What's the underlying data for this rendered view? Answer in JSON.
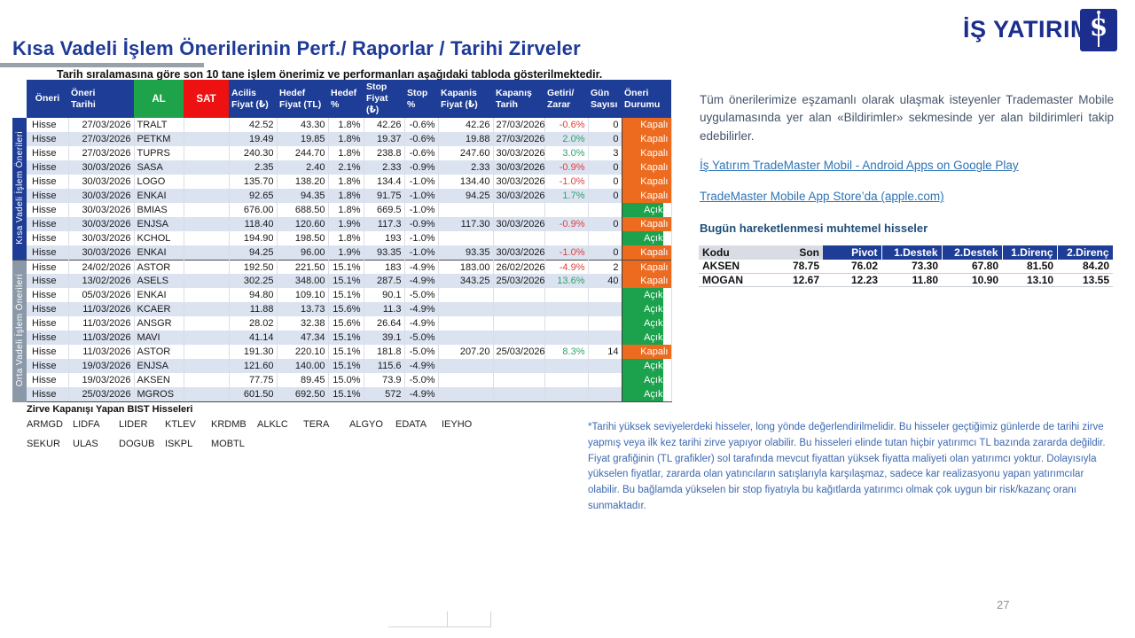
{
  "logo": {
    "text": "İŞ YATIRIM",
    "monogram": "İŞ"
  },
  "title": "Kısa Vadeli İşlem Önerilerinin Perf./ Raporlar / Tarihi Zirveler",
  "subtitle": "Tarih sıralamasına göre son 10 tane işlem önerimiz ve performanları aşağıdaki tabloda gösterilmektedir.",
  "main_table": {
    "headers": [
      "Öneri",
      "Öneri\nTarihi",
      "AL",
      "SAT",
      "Acilis\nFiyat (₺)",
      "Hedef\nFiyat (TL)",
      "Hedef\n%",
      "Stop\nFiyat (₺)",
      "Stop\n%",
      "Kapanis\nFiyat (₺)",
      "Kapanış\nTarih",
      "Getiri/\nZarar",
      "Gün\nSayısı",
      "Öneri\nDurumu"
    ],
    "sections": [
      {
        "label": "Kısa Vadeli İşlem Önerileri",
        "rows": [
          [
            "Hisse",
            "27/03/2026",
            "TRALT",
            "",
            "42.52",
            "43.30",
            "1.8%",
            "42.26",
            "-0.6%",
            "42.26",
            "27/03/2026",
            "-0.6%",
            "0",
            "Kapalı"
          ],
          [
            "Hisse",
            "27/03/2026",
            "PETKM",
            "",
            "19.49",
            "19.85",
            "1.8%",
            "19.37",
            "-0.6%",
            "19.88",
            "27/03/2026",
            "2.0%",
            "0",
            "Kapalı"
          ],
          [
            "Hisse",
            "27/03/2026",
            "TUPRS",
            "",
            "240.30",
            "244.70",
            "1.8%",
            "238.8",
            "-0.6%",
            "247.60",
            "30/03/2026",
            "3.0%",
            "3",
            "Kapalı"
          ],
          [
            "Hisse",
            "30/03/2026",
            "SASA",
            "",
            "2.35",
            "2.40",
            "2.1%",
            "2.33",
            "-0.9%",
            "2.33",
            "30/03/2026",
            "-0.9%",
            "0",
            "Kapalı"
          ],
          [
            "Hisse",
            "30/03/2026",
            "LOGO",
            "",
            "135.70",
            "138.20",
            "1.8%",
            "134.4",
            "-1.0%",
            "134.40",
            "30/03/2026",
            "-1.0%",
            "0",
            "Kapalı"
          ],
          [
            "Hisse",
            "30/03/2026",
            "ENKAI",
            "",
            "92.65",
            "94.35",
            "1.8%",
            "91.75",
            "-1.0%",
            "94.25",
            "30/03/2026",
            "1.7%",
            "0",
            "Kapalı"
          ],
          [
            "Hisse",
            "30/03/2026",
            "BMIAS",
            "",
            "676.00",
            "688.50",
            "1.8%",
            "669.5",
            "-1.0%",
            "",
            "",
            "",
            "",
            "Açık"
          ],
          [
            "Hisse",
            "30/03/2026",
            "ENJSA",
            "",
            "118.40",
            "120.60",
            "1.9%",
            "117.3",
            "-0.9%",
            "117.30",
            "30/03/2026",
            "-0.9%",
            "0",
            "Kapalı"
          ],
          [
            "Hisse",
            "30/03/2026",
            "KCHOL",
            "",
            "194.90",
            "198.50",
            "1.8%",
            "193",
            "-1.0%",
            "",
            "",
            "",
            "",
            "Açık"
          ],
          [
            "Hisse",
            "30/03/2026",
            "ENKAI",
            "",
            "94.25",
            "96.00",
            "1.9%",
            "93.35",
            "-1.0%",
            "93.35",
            "30/03/2026",
            "-1.0%",
            "0",
            "Kapalı"
          ]
        ]
      },
      {
        "label": "Orta Vadeli İşlem Önerileri",
        "rows": [
          [
            "Hisse",
            "24/02/2026",
            "ASTOR",
            "",
            "192.50",
            "221.50",
            "15.1%",
            "183",
            "-4.9%",
            "183.00",
            "26/02/2026",
            "-4.9%",
            "2",
            "Kapalı"
          ],
          [
            "Hisse",
            "13/02/2026",
            "ASELS",
            "",
            "302.25",
            "348.00",
            "15.1%",
            "287.5",
            "-4.9%",
            "343.25",
            "25/03/2026",
            "13.6%",
            "40",
            "Kapalı"
          ],
          [
            "Hisse",
            "05/03/2026",
            "ENKAI",
            "",
            "94.80",
            "109.10",
            "15.1%",
            "90.1",
            "-5.0%",
            "",
            "",
            "",
            "",
            "Açık"
          ],
          [
            "Hisse",
            "11/03/2026",
            "KCAER",
            "",
            "11.88",
            "13.73",
            "15.6%",
            "11.3",
            "-4.9%",
            "",
            "",
            "",
            "",
            "Açık"
          ],
          [
            "Hisse",
            "11/03/2026",
            "ANSGR",
            "",
            "28.02",
            "32.38",
            "15.6%",
            "26.64",
            "-4.9%",
            "",
            "",
            "",
            "",
            "Açık"
          ],
          [
            "Hisse",
            "11/03/2026",
            "MAVI",
            "",
            "41.14",
            "47.34",
            "15.1%",
            "39.1",
            "-5.0%",
            "",
            "",
            "",
            "",
            "Açık"
          ],
          [
            "Hisse",
            "11/03/2026",
            "ASTOR",
            "",
            "191.30",
            "220.10",
            "15.1%",
            "181.8",
            "-5.0%",
            "207.20",
            "25/03/2026",
            "8.3%",
            "14",
            "Kapalı"
          ],
          [
            "Hisse",
            "19/03/2026",
            "ENJSA",
            "",
            "121.60",
            "140.00",
            "15.1%",
            "115.6",
            "-4.9%",
            "",
            "",
            "",
            "",
            "Açık"
          ],
          [
            "Hisse",
            "19/03/2026",
            "AKSEN",
            "",
            "77.75",
            "89.45",
            "15.0%",
            "73.9",
            "-5.0%",
            "",
            "",
            "",
            "",
            "Açık"
          ],
          [
            "Hisse",
            "25/03/2026",
            "MGROS",
            "",
            "601.50",
            "692.50",
            "15.1%",
            "572",
            "-4.9%",
            "",
            "",
            "",
            "",
            "Açık"
          ]
        ]
      }
    ],
    "status_open": "Açık",
    "status_closed": "Kapalı"
  },
  "zirve": {
    "heading": "Zirve Kapanışı Yapan BIST Hisseleri",
    "tickers_row1": [
      "ARMGD",
      "LIDFA",
      "LIDER",
      "KTLEV",
      "KRDMB",
      "ALKLC",
      "TERA",
      "ALGYO",
      "EDATA",
      "IEYHO"
    ],
    "tickers_row2": [
      "SEKUR",
      "ULAS",
      "DOGUB",
      "ISKPL",
      "MOBTL"
    ]
  },
  "right_panel": {
    "intro": "Tüm önerilerimize eşzamanlı olarak ulaşmak isteyenler Trademaster Mobile uygulamasında yer alan «Bildirimler» sekmesinde yer alan bildirimleri takip edebilirler.",
    "links": [
      "İş Yatırım TradeMaster Mobil - Android Apps on Google Play",
      "TradeMaster Mobile App Store’da (apple.com)"
    ],
    "movers_heading": "Bugün hareketlenmesi muhtemel hisseler",
    "movers_table": {
      "headers": [
        "Kodu",
        "Son",
        "Pivot",
        "1.Destek",
        "2.Destek",
        "1.Direnç",
        "2.Direnç"
      ],
      "rows": [
        [
          "AKSEN",
          "78.75",
          "76.02",
          "73.30",
          "67.80",
          "81.50",
          "84.20"
        ],
        [
          "MOGAN",
          "12.67",
          "12.23",
          "11.80",
          "10.90",
          "13.10",
          "13.55"
        ]
      ]
    }
  },
  "footnote": "*Tarihi yüksek seviyelerdeki hisseler, long yönde değerlendirilmelidir. Bu hisseler geçtiğimiz günlerde de tarihi zirve yapmış veya ilk kez tarihi zirve yapıyor olabilir. Bu hisseleri elinde tutan hiçbir yatırımcı TL bazında zararda değildir. Fiyat grafiğinin (TL grafikler) sol tarafında mevcut fiyattan yüksek fiyatta maliyeti olan yatırımcı yoktur. Dolayısıyla yükselen fiyatlar, zararda olan yatıncıların satışlarıyla karşılaşmaz, sadece kar realizasyonu yapan yatırımcılar olabilir. Bu bağlamda yükselen bir stop fiyatıyla bu kağıtlarda yatırımcı olmak çok uygun bir risk/kazanç oranı sunmaktadır.",
  "page_number": "27",
  "colors": {
    "navy": "#1e3d96",
    "brand_navy": "#1b2d8d",
    "sidebar_gray": "#8a98a8",
    "al_green": "#1fa34a",
    "sat_red": "#ee1111",
    "status_closed_orange": "#ec6b1f",
    "status_open_green": "#1ca24d",
    "positive_text": "#2fa36b",
    "negative_text": "#e0413f",
    "alt_row": "#dbe2f0",
    "link_blue": "#2e75b6",
    "footnote_blue": "#3d68b0"
  }
}
